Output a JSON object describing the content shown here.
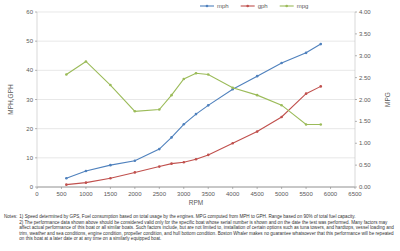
{
  "chart_data": {
    "type": "line",
    "x_label": "RPM",
    "y_label": "MPH,GPH",
    "y2_label": "MPG",
    "x": [
      600,
      1000,
      1500,
      2000,
      2500,
      2750,
      3000,
      3250,
      3500,
      4000,
      4500,
      5000,
      5500,
      5800
    ],
    "series": [
      {
        "name": "mph",
        "color": "#4f81bd",
        "marker": "circle",
        "line_style": "solid",
        "values": [
          3,
          5.5,
          7.5,
          9,
          13,
          17,
          21.5,
          25,
          28,
          33.5,
          38,
          42.5,
          46,
          49
        ]
      },
      {
        "name": "gph",
        "color": "#c0504d",
        "marker": "circle",
        "line_style": "solid",
        "values": [
          0.8,
          1.5,
          3,
          5,
          7,
          8,
          8.5,
          9.5,
          11,
          15,
          19,
          24,
          32,
          34.5
        ]
      },
      {
        "name": "mpg",
        "color": "#9bbb59",
        "marker": "circle",
        "line_style": "solid",
        "axis": "y2",
        "values": [
          2.57,
          2.87,
          2.33,
          1.73,
          1.77,
          2.1,
          2.47,
          2.6,
          2.57,
          2.27,
          2.1,
          1.87,
          1.43,
          1.43
        ]
      }
    ],
    "xlim": [
      0,
      6500
    ],
    "xticks": [
      0,
      500,
      1000,
      1500,
      2000,
      2500,
      3000,
      3500,
      4000,
      4500,
      5000,
      5500,
      6000,
      6500
    ],
    "ylim": [
      0,
      60
    ],
    "yticks": [
      0,
      10,
      20,
      30,
      40,
      50,
      60
    ],
    "y2lim": [
      0,
      4
    ],
    "y2ticks": [
      {
        "value": 0,
        "label": "0.00"
      },
      {
        "value": 0.5,
        "label": "0.50"
      },
      {
        "value": 1,
        "label": "1.00"
      },
      {
        "value": 1.5,
        "label": "1.50"
      },
      {
        "value": 2,
        "label": "2.00"
      },
      {
        "value": 2.5,
        "label": "2.50"
      },
      {
        "value": 3,
        "label": "3.00"
      },
      {
        "value": 3.5,
        "label": "3.50"
      },
      {
        "value": 4,
        "label": "4.00"
      }
    ],
    "grid": true,
    "legend": "top",
    "notes": [
      "Notes:",
      "1) Speed determined by GPS, Fuel consumption based on total usage by the engines. MPG computed from MPH to GPH.  Range based on 90% of total fuel capacity.",
      "2) The performance data shown above should be considered valid only for the specific boat whose serial number is shown and on the date the test was performed. Many factors may affect actual performance of this boat or all similar boats. Such factors include, but are not limited to, installation of certain options such as tuna towers, and hardtops, vessel loading and trim, weather and sea conditions, engine condition, propeller condition, and hull bottom condition. Boston Whaler makes no guarantee whatsoever that this performance will be repeated on this boat at a later date or at any time on a similarly equipped boat."
    ]
  }
}
